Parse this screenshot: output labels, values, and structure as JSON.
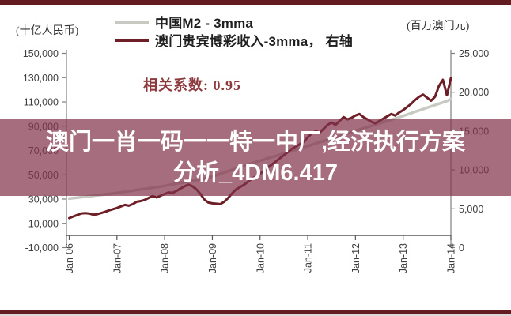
{
  "page": {
    "top_bar_color": "#621c22",
    "bottom_bar_color": "#621c22",
    "bottom_strip_color": "#d9d9d9",
    "axis_color": "#7f7f7f",
    "tick_text_color": "#3f3f3f"
  },
  "legend": {
    "left_unit": "(十亿人民币)",
    "right_unit": "(百万澳门元)",
    "series1_label": "中国M2 - 3mma",
    "series1_color": "#c9c9c3",
    "series2_label": "澳门贵宾博彩收入-3mma， 右轴",
    "series2_color": "#6e1e26"
  },
  "annotation": {
    "correlation_label": "相关系数:",
    "correlation_value": "0.95",
    "color": "#8d3a3e"
  },
  "overlay_banner": {
    "line1": "澳门一肖一码一一特一中厂,经济执行方案",
    "line2": "分析_4DM6.417",
    "text_color": "#ffffff",
    "bg_color": "rgba(130,52,76,0.72)"
  },
  "chart_data": {
    "type": "line",
    "title": "",
    "x_tick_labels": [
      "Jan-06",
      "Jan-07",
      "Jan-08",
      "Jan-09",
      "Jan-10",
      "Jan-11",
      "Jan-12",
      "Jan-13",
      "Jan-14"
    ],
    "left_axis": {
      "unit": "十亿人民币",
      "min": -10000,
      "max": 150000,
      "step": 20000,
      "tick_labels": [
        "150,000",
        "130,000",
        "110,000",
        "90,000",
        "70,000",
        "50,000",
        "30,000",
        "10,000",
        "-10,000"
      ]
    },
    "right_axis": {
      "unit": "百万澳门元",
      "min": 0,
      "max": 25000,
      "step": 5000,
      "tick_labels": [
        "25,000",
        "20,000",
        "15,000",
        "10,000",
        "5,000",
        "0"
      ]
    },
    "x_range": {
      "start": "Jan-06",
      "end": "Jan-14",
      "points": 97,
      "frequency": "monthly"
    },
    "correlation": 0.95,
    "grid": false,
    "legend_position": "top",
    "series": [
      {
        "name": "中国M2 - 3mma",
        "axis": "left",
        "color": "#c9c9c3",
        "width": 3.5,
        "monthly_values": [
          30400,
          30780,
          31160,
          31540,
          31920,
          32300,
          32680,
          33060,
          33440,
          33820,
          34200,
          34600,
          35075,
          35550,
          36025,
          36500,
          36975,
          37450,
          37925,
          38400,
          38875,
          39350,
          39825,
          40300,
          40900,
          41500,
          42100,
          42700,
          43300,
          43900,
          44500,
          45100,
          45700,
          46300,
          46900,
          47500,
          48590,
          49680,
          50770,
          51860,
          52950,
          54040,
          55130,
          56220,
          57310,
          58400,
          59500,
          60600,
          61600,
          62600,
          63600,
          64600,
          65600,
          66600,
          67600,
          68600,
          69600,
          70600,
          71600,
          72600,
          73650,
          74700,
          75750,
          76800,
          77850,
          78900,
          79950,
          81000,
          82050,
          83100,
          84150,
          85200,
          86215,
          87230,
          88245,
          89260,
          90275,
          91290,
          92305,
          93320,
          94335,
          95350,
          96365,
          97400,
          98510,
          99620,
          100730,
          101840,
          102950,
          104060,
          105170,
          106280,
          107390,
          108500,
          109600,
          110700,
          112300
        ]
      },
      {
        "name": "澳门贵宾博彩收入-3mma",
        "axis": "right",
        "color": "#6e1e26",
        "width": 3,
        "monthly_values": [
          3800,
          4000,
          4200,
          4400,
          4450,
          4400,
          4250,
          4300,
          4450,
          4600,
          4800,
          4950,
          5100,
          5300,
          5500,
          5400,
          5600,
          5900,
          6000,
          6150,
          6400,
          6650,
          6450,
          6700,
          6900,
          7100,
          7050,
          7300,
          7600,
          7900,
          8100,
          7900,
          7500,
          6900,
          6200,
          5800,
          5700,
          5650,
          5600,
          5900,
          6400,
          7000,
          7500,
          7800,
          8100,
          8500,
          8900,
          9200,
          9500,
          9900,
          10300,
          10700,
          11100,
          11500,
          11900,
          12300,
          12700,
          13000,
          13300,
          13600,
          14200,
          14700,
          15000,
          14800,
          15300,
          15800,
          16100,
          15800,
          16300,
          16800,
          16500,
          16700,
          17000,
          17200,
          16800,
          16500,
          16200,
          16000,
          16300,
          16600,
          16900,
          17200,
          17000,
          17400,
          17700,
          18100,
          18500,
          19000,
          19400,
          19700,
          19300,
          18900,
          19400,
          20800,
          21600,
          19600,
          21800
        ]
      }
    ]
  }
}
